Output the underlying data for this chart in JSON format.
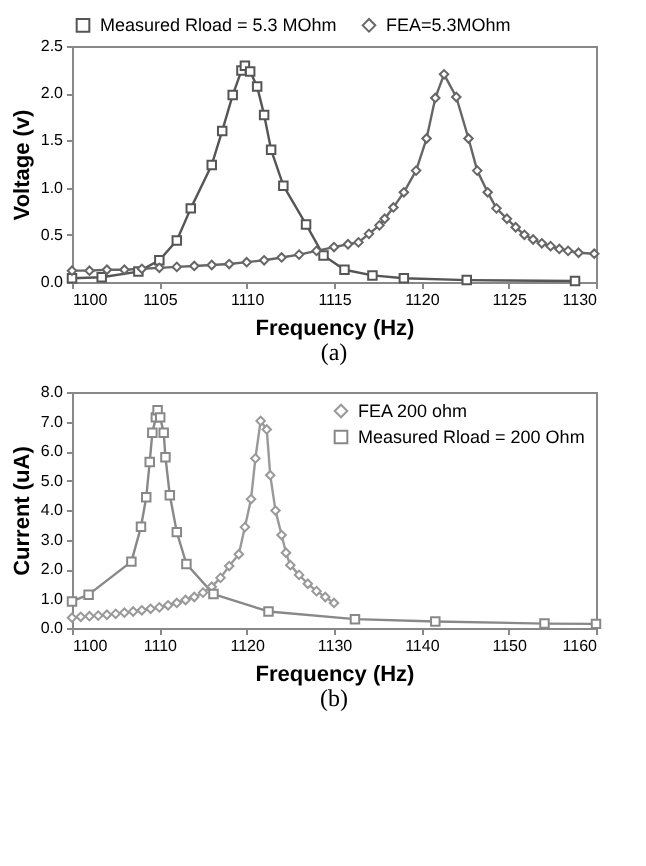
{
  "chart_data": [
    {
      "type": "line",
      "xlabel": "Frequency (Hz)",
      "ylabel": "Voltage (v)",
      "annotations": [
        "(a)"
      ],
      "xlim": [
        1100,
        1130
      ],
      "xticks": [
        1100,
        1105,
        1110,
        1115,
        1120,
        1125,
        1130
      ],
      "ylim": [
        0,
        2.5
      ],
      "yticks": [
        {
          "value": 0,
          "label": "0.0"
        },
        0.5,
        {
          "value": 1,
          "label": "1.0"
        },
        1.5,
        {
          "value": 2,
          "label": "2.0"
        },
        2.5
      ],
      "legend": "top",
      "grid": false,
      "line_style": "solid",
      "series": [
        {
          "name": "Measured Rload = 5.3 MOhm",
          "color": "#555555",
          "marker": "square",
          "x": [
            1100,
            1101.7,
            1103.8,
            1105.0,
            1106.0,
            1106.8,
            1108.0,
            1108.6,
            1109.2,
            1109.7,
            1109.9,
            1110.2,
            1110.6,
            1111.0,
            1111.4,
            1112.1,
            1113.4,
            1114.4,
            1115.6,
            1117.2,
            1119.0,
            1122.6,
            1128.8
          ],
          "values": [
            0.04,
            0.05,
            0.11,
            0.23,
            0.44,
            0.78,
            1.24,
            1.6,
            1.98,
            2.24,
            2.29,
            2.23,
            2.07,
            1.77,
            1.4,
            1.02,
            0.61,
            0.28,
            0.13,
            0.07,
            0.04,
            0.02,
            0.01
          ]
        },
        {
          "name": "FEA=5.3MOhm",
          "color": "#666666",
          "marker": "diamond",
          "x": [
            1100,
            1101,
            1102,
            1103,
            1104,
            1105,
            1106,
            1107,
            1108,
            1109,
            1110,
            1111,
            1112,
            1113,
            1114,
            1115,
            1115.8,
            1116.4,
            1117.0,
            1117.6,
            1117.9,
            1118.4,
            1119.0,
            1119.7,
            1120.3,
            1120.8,
            1121.3,
            1122.0,
            1122.7,
            1123.2,
            1123.8,
            1124.3,
            1124.9,
            1125.4,
            1125.9,
            1126.4,
            1126.9,
            1127.4,
            1127.9,
            1128.4,
            1129.0,
            1129.9
          ],
          "values": [
            0.12,
            0.12,
            0.13,
            0.13,
            0.14,
            0.15,
            0.16,
            0.17,
            0.18,
            0.19,
            0.21,
            0.23,
            0.26,
            0.29,
            0.33,
            0.37,
            0.4,
            0.42,
            0.51,
            0.6,
            0.67,
            0.79,
            0.95,
            1.18,
            1.52,
            1.95,
            2.2,
            1.96,
            1.52,
            1.18,
            0.95,
            0.78,
            0.67,
            0.58,
            0.5,
            0.45,
            0.41,
            0.38,
            0.35,
            0.33,
            0.31,
            0.3
          ]
        }
      ]
    },
    {
      "type": "line",
      "xlabel": "Frequency (Hz)",
      "ylabel": "Current (uA)",
      "annotations": [
        "(b)"
      ],
      "xlim": [
        1100,
        1160
      ],
      "xticks": [
        1100,
        1110,
        1120,
        1130,
        1140,
        1150,
        1160
      ],
      "ylim": [
        0,
        8
      ],
      "yticks": [
        {
          "value": 0,
          "label": "0.0"
        },
        {
          "value": 1,
          "label": "1.0"
        },
        {
          "value": 2,
          "label": "2.0"
        },
        {
          "value": 3,
          "label": "3.0"
        },
        {
          "value": 4,
          "label": "4.0"
        },
        {
          "value": 5,
          "label": "5.0"
        },
        {
          "value": 6,
          "label": "6.0"
        },
        {
          "value": 7,
          "label": "7.0"
        },
        {
          "value": 8,
          "label": "8.0"
        }
      ],
      "legend": "top right",
      "grid": false,
      "line_style": "solid",
      "series": [
        {
          "name": "FEA 200 ohm",
          "color": "#999999",
          "marker": "diamond",
          "x": [
            1100,
            1101,
            1102,
            1103,
            1104,
            1105,
            1106,
            1107,
            1108,
            1109,
            1110,
            1111,
            1112,
            1113,
            1114,
            1115,
            1116,
            1117,
            1118,
            1119.1,
            1119.8,
            1120.5,
            1121.0,
            1121.6,
            1122.3,
            1122.7,
            1123.3,
            1124.0,
            1124.5,
            1125.0,
            1126,
            1127,
            1128,
            1129,
            1130
          ],
          "values": [
            0.35,
            0.38,
            0.4,
            0.42,
            0.45,
            0.48,
            0.52,
            0.56,
            0.6,
            0.65,
            0.7,
            0.77,
            0.85,
            0.95,
            1.05,
            1.2,
            1.4,
            1.7,
            2.1,
            2.5,
            3.42,
            4.37,
            5.75,
            7.02,
            6.73,
            5.18,
            3.98,
            3.15,
            2.55,
            2.13,
            1.8,
            1.5,
            1.25,
            1.05,
            0.85
          ]
        },
        {
          "name": "Measured Rload = 200 Ohm",
          "color": "#888888",
          "marker": "square",
          "x": [
            1100,
            1101.9,
            1106.8,
            1107.9,
            1108.5,
            1108.9,
            1109.2,
            1109.6,
            1109.8,
            1110.1,
            1110.5,
            1110.7,
            1111.2,
            1112.0,
            1113.1,
            1116.2,
            1122.5,
            1132.4,
            1141.6,
            1154.1,
            1160
          ],
          "values": [
            0.9,
            1.13,
            2.25,
            3.43,
            4.43,
            5.63,
            6.62,
            7.14,
            7.38,
            7.14,
            6.62,
            5.79,
            4.5,
            3.25,
            2.17,
            1.15,
            0.56,
            0.3,
            0.22,
            0.15,
            0.14
          ]
        }
      ]
    }
  ]
}
